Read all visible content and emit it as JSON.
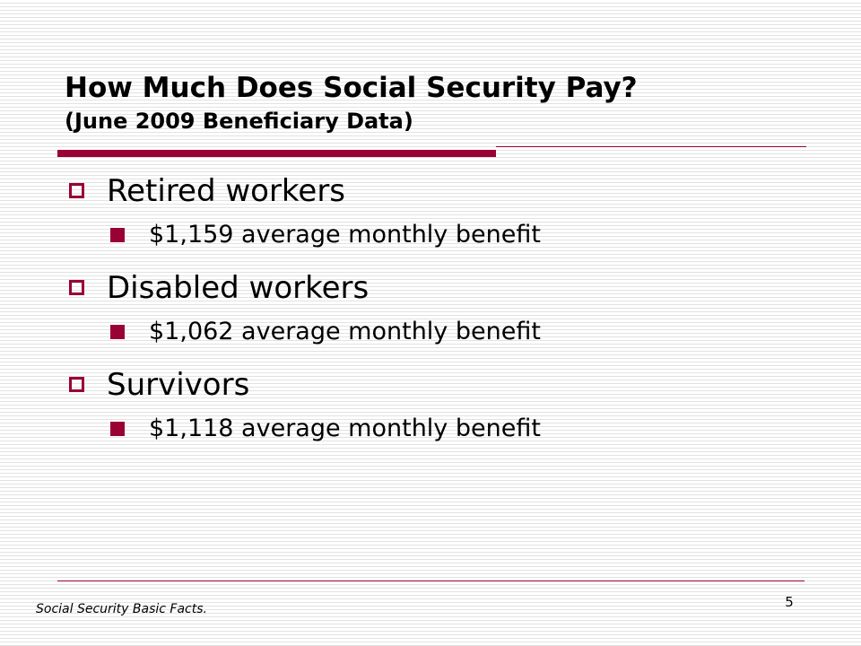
{
  "slide": {
    "title_line1": "How Much Does Social Security Pay?",
    "title_line2": "(June 2009 Beneficiary Data)",
    "bullets": [
      {
        "label": "Retired workers",
        "sub": "$1,159 average monthly benefit"
      },
      {
        "label": "Disabled workers",
        "sub": "$1,062 average monthly benefit"
      },
      {
        "label": "Survivors",
        "sub": "$1,118 average monthly benefit"
      }
    ],
    "footer_source": "Social Security Basic Facts.",
    "page_number": "5"
  },
  "colors": {
    "accent": "#990033",
    "text": "#000000",
    "background": "#ffffff",
    "stripe": "#e2e2e2"
  },
  "icons": {
    "level1_bullet": "hollow-square-bullet-icon",
    "level2_bullet": "filled-square-bullet-icon"
  }
}
